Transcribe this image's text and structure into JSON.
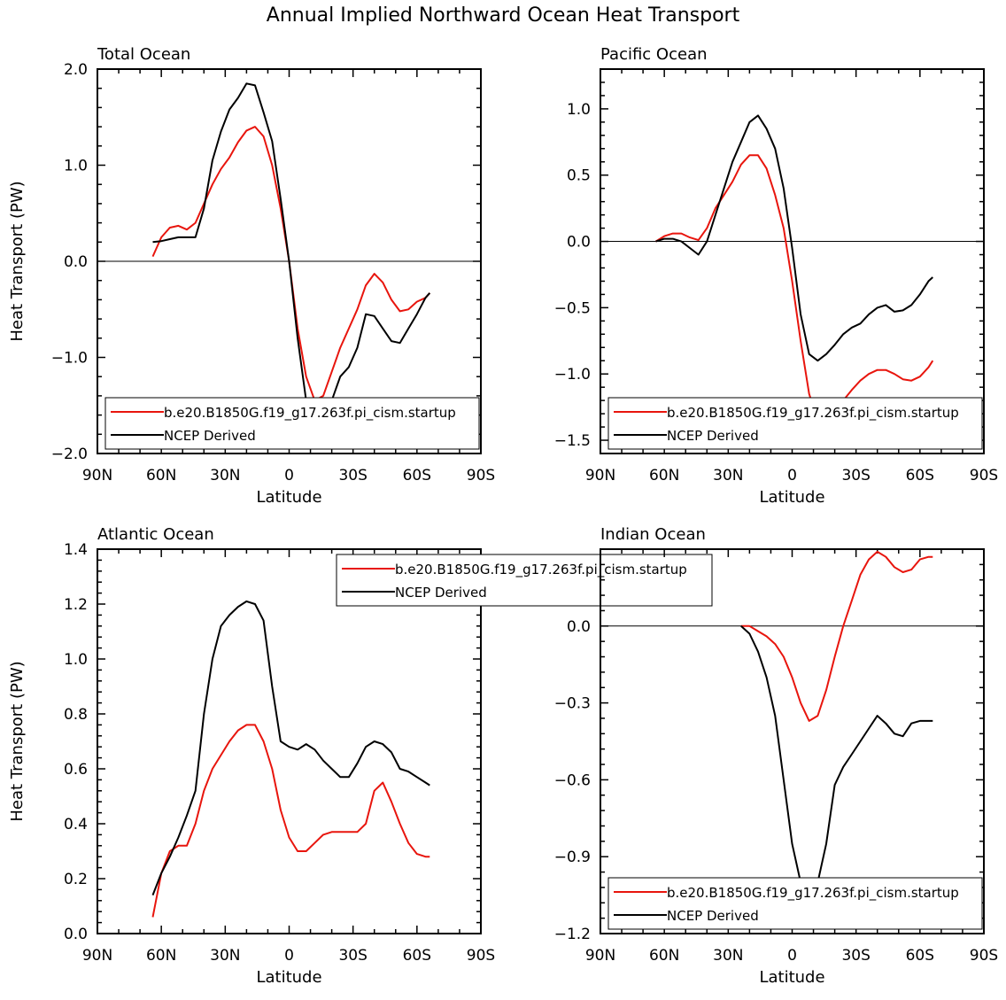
{
  "figure_title": "Annual Implied Northward Ocean Heat Transport",
  "colors": {
    "model": "#e8150d",
    "ncep": "#000000"
  },
  "legend_labels": [
    "b.e20.B1850G.f19_g17.263f.pi_cism.startup",
    "NCEP Derived"
  ],
  "chart_data": [
    {
      "type": "line",
      "title": "Total Ocean",
      "xlabel": "Latitude",
      "ylabel": "Heat Transport (PW)",
      "xlim": [
        90,
        -90
      ],
      "ylim": [
        -2.0,
        2.0
      ],
      "x_ticks": [
        90,
        60,
        30,
        0,
        -30,
        -60,
        -90
      ],
      "x_tick_labels": [
        "90N",
        "60N",
        "30N",
        "0",
        "30S",
        "60S",
        "90S"
      ],
      "y_ticks": [
        2.0,
        1.0,
        0.0,
        -1.0,
        -2.0
      ],
      "y_tick_labels": [
        "2.0",
        "1.0",
        "0.0",
        "−1.0",
        "−2.0"
      ],
      "legend_position": "bottom",
      "series": [
        {
          "name": "b.e20.B1850G.f19_g17.263f.pi_cism.startup",
          "color": "#e8150d",
          "x": [
            64,
            60,
            56,
            52,
            48,
            44,
            40,
            36,
            32,
            28,
            24,
            20,
            16,
            12,
            8,
            4,
            0,
            -4,
            -8,
            -12,
            -16,
            -20,
            -24,
            -28,
            -32,
            -36,
            -40,
            -44,
            -48,
            -52,
            -56,
            -60,
            -64,
            -66
          ],
          "y": [
            0.05,
            0.25,
            0.35,
            0.37,
            0.33,
            0.4,
            0.6,
            0.8,
            0.96,
            1.08,
            1.24,
            1.36,
            1.4,
            1.3,
            1.0,
            0.55,
            0.0,
            -0.7,
            -1.2,
            -1.45,
            -1.4,
            -1.15,
            -0.9,
            -0.7,
            -0.5,
            -0.25,
            -0.13,
            -0.22,
            -0.4,
            -0.52,
            -0.5,
            -0.42,
            -0.38,
            -0.33
          ]
        },
        {
          "name": "NCEP Derived",
          "color": "#000000",
          "x": [
            64,
            60,
            56,
            52,
            48,
            44,
            40,
            36,
            32,
            28,
            24,
            20,
            16,
            12,
            8,
            4,
            0,
            -4,
            -8,
            -12,
            -16,
            -20,
            -24,
            -28,
            -32,
            -36,
            -40,
            -44,
            -48,
            -52,
            -56,
            -60,
            -64,
            -66
          ],
          "y": [
            0.2,
            0.21,
            0.23,
            0.25,
            0.25,
            0.25,
            0.55,
            1.05,
            1.35,
            1.58,
            1.7,
            1.85,
            1.83,
            1.55,
            1.25,
            0.65,
            0.0,
            -0.8,
            -1.45,
            -1.65,
            -1.62,
            -1.45,
            -1.2,
            -1.1,
            -0.9,
            -0.55,
            -0.57,
            -0.7,
            -0.83,
            -0.85,
            -0.7,
            -0.55,
            -0.38,
            -0.33
          ]
        }
      ]
    },
    {
      "type": "line",
      "title": "Pacific Ocean",
      "xlabel": "Latitude",
      "ylabel": "",
      "xlim": [
        90,
        -90
      ],
      "ylim": [
        -1.6,
        1.3
      ],
      "x_ticks": [
        90,
        60,
        30,
        0,
        -30,
        -60,
        -90
      ],
      "x_tick_labels": [
        "90N",
        "60N",
        "30N",
        "0",
        "30S",
        "60S",
        "90S"
      ],
      "y_ticks": [
        1.0,
        0.5,
        0.0,
        -0.5,
        -1.0,
        -1.5
      ],
      "y_tick_labels": [
        "1.0",
        "0.5",
        "0.0",
        "−0.5",
        "−1.0",
        "−1.5"
      ],
      "legend_position": "bottom",
      "series": [
        {
          "name": "b.e20.B1850G.f19_g17.263f.pi_cism.startup",
          "color": "#e8150d",
          "x": [
            64,
            60,
            56,
            52,
            48,
            44,
            40,
            36,
            32,
            28,
            24,
            20,
            16,
            12,
            8,
            4,
            0,
            -4,
            -8,
            -12,
            -16,
            -20,
            -24,
            -28,
            -32,
            -36,
            -40,
            -44,
            -48,
            -52,
            -56,
            -60,
            -64,
            -66
          ],
          "y": [
            0.0,
            0.04,
            0.06,
            0.06,
            0.03,
            0.01,
            0.1,
            0.25,
            0.35,
            0.45,
            0.58,
            0.65,
            0.65,
            0.55,
            0.35,
            0.1,
            -0.3,
            -0.75,
            -1.15,
            -1.35,
            -1.38,
            -1.3,
            -1.2,
            -1.12,
            -1.05,
            -1.0,
            -0.97,
            -0.97,
            -1.0,
            -1.04,
            -1.05,
            -1.02,
            -0.95,
            -0.9
          ]
        },
        {
          "name": "NCEP Derived",
          "color": "#000000",
          "x": [
            64,
            60,
            56,
            52,
            48,
            44,
            40,
            36,
            32,
            28,
            24,
            20,
            16,
            12,
            8,
            4,
            0,
            -4,
            -8,
            -12,
            -16,
            -20,
            -24,
            -28,
            -32,
            -36,
            -40,
            -44,
            -48,
            -52,
            -56,
            -60,
            -64,
            -66
          ],
          "y": [
            0.0,
            0.02,
            0.02,
            0.0,
            -0.05,
            -0.1,
            0.0,
            0.2,
            0.4,
            0.6,
            0.75,
            0.9,
            0.95,
            0.85,
            0.7,
            0.4,
            -0.05,
            -0.55,
            -0.85,
            -0.9,
            -0.85,
            -0.78,
            -0.7,
            -0.65,
            -0.62,
            -0.55,
            -0.5,
            -0.48,
            -0.53,
            -0.52,
            -0.48,
            -0.4,
            -0.3,
            -0.27
          ]
        }
      ]
    },
    {
      "type": "line",
      "title": "Atlantic Ocean",
      "xlabel": "Latitude",
      "ylabel": "Heat Transport (PW)",
      "xlim": [
        90,
        -90
      ],
      "ylim": [
        0.0,
        1.4
      ],
      "x_ticks": [
        90,
        60,
        30,
        0,
        -30,
        -60,
        -90
      ],
      "x_tick_labels": [
        "90N",
        "60N",
        "30N",
        "0",
        "30S",
        "60S",
        "90S"
      ],
      "y_ticks": [
        1.4,
        1.2,
        1.0,
        0.8,
        0.6,
        0.4,
        0.2,
        0.0
      ],
      "y_tick_labels": [
        "1.4",
        "1.2",
        "1.0",
        "0.8",
        "0.6",
        "0.4",
        "0.2",
        "0.0"
      ],
      "legend_position": "top-center",
      "series": [
        {
          "name": "b.e20.B1850G.f19_g17.263f.pi_cism.startup",
          "color": "#e8150d",
          "x": [
            64,
            60,
            56,
            52,
            48,
            44,
            40,
            36,
            32,
            28,
            24,
            20,
            16,
            12,
            8,
            4,
            0,
            -4,
            -8,
            -12,
            -16,
            -20,
            -24,
            -28,
            -32,
            -36,
            -40,
            -44,
            -48,
            -52,
            -56,
            -60,
            -64,
            -66
          ],
          "y": [
            0.06,
            0.22,
            0.3,
            0.32,
            0.32,
            0.4,
            0.52,
            0.6,
            0.65,
            0.7,
            0.74,
            0.76,
            0.76,
            0.7,
            0.6,
            0.45,
            0.35,
            0.3,
            0.3,
            0.33,
            0.36,
            0.37,
            0.37,
            0.37,
            0.37,
            0.4,
            0.52,
            0.55,
            0.48,
            0.4,
            0.33,
            0.29,
            0.28,
            0.28
          ]
        },
        {
          "name": "NCEP Derived",
          "color": "#000000",
          "x": [
            64,
            60,
            56,
            52,
            48,
            44,
            40,
            36,
            32,
            28,
            24,
            20,
            16,
            12,
            8,
            4,
            0,
            -4,
            -8,
            -12,
            -16,
            -20,
            -24,
            -28,
            -32,
            -36,
            -40,
            -44,
            -48,
            -52,
            -56,
            -60,
            -64,
            -66
          ],
          "y": [
            0.14,
            0.22,
            0.28,
            0.35,
            0.43,
            0.52,
            0.8,
            1.0,
            1.12,
            1.16,
            1.19,
            1.21,
            1.2,
            1.14,
            0.9,
            0.7,
            0.68,
            0.67,
            0.69,
            0.67,
            0.63,
            0.6,
            0.57,
            0.57,
            0.62,
            0.68,
            0.7,
            0.69,
            0.66,
            0.6,
            0.59,
            0.57,
            0.55,
            0.54
          ]
        }
      ]
    },
    {
      "type": "line",
      "title": "Indian Ocean",
      "xlabel": "Latitude",
      "ylabel": "",
      "xlim": [
        90,
        -90
      ],
      "ylim": [
        -1.2,
        0.3
      ],
      "x_ticks": [
        90,
        60,
        30,
        0,
        -30,
        -60,
        -90
      ],
      "x_tick_labels": [
        "90N",
        "60N",
        "30N",
        "0",
        "30S",
        "60S",
        "90S"
      ],
      "y_ticks": [
        0.0,
        -0.3,
        -0.6,
        -0.9,
        -1.2
      ],
      "y_tick_labels": [
        "0.0",
        "−0.3",
        "−0.6",
        "−0.9",
        "−1.2"
      ],
      "legend_position": "bottom",
      "series": [
        {
          "name": "b.e20.B1850G.f19_g17.263f.pi_cism.startup",
          "color": "#e8150d",
          "x": [
            24,
            20,
            16,
            12,
            8,
            4,
            0,
            -4,
            -8,
            -12,
            -16,
            -20,
            -24,
            -28,
            -32,
            -36,
            -40,
            -44,
            -48,
            -52,
            -56,
            -60,
            -64,
            -66
          ],
          "y": [
            0.0,
            0.0,
            -0.02,
            -0.04,
            -0.07,
            -0.12,
            -0.2,
            -0.3,
            -0.37,
            -0.35,
            -0.25,
            -0.12,
            0.0,
            0.1,
            0.2,
            0.26,
            0.29,
            0.27,
            0.23,
            0.21,
            0.22,
            0.26,
            0.27,
            0.27
          ]
        },
        {
          "name": "NCEP Derived",
          "color": "#000000",
          "x": [
            24,
            20,
            16,
            12,
            8,
            4,
            0,
            -4,
            -8,
            -12,
            -16,
            -20,
            -24,
            -28,
            -32,
            -36,
            -40,
            -44,
            -48,
            -52,
            -56,
            -60,
            -64,
            -66
          ],
          "y": [
            0.0,
            -0.03,
            -0.1,
            -0.2,
            -0.35,
            -0.6,
            -0.85,
            -1.0,
            -1.05,
            -1.0,
            -0.85,
            -0.62,
            -0.55,
            -0.5,
            -0.45,
            -0.4,
            -0.35,
            -0.38,
            -0.42,
            -0.43,
            -0.38,
            -0.37,
            -0.37,
            -0.37
          ]
        }
      ]
    }
  ]
}
